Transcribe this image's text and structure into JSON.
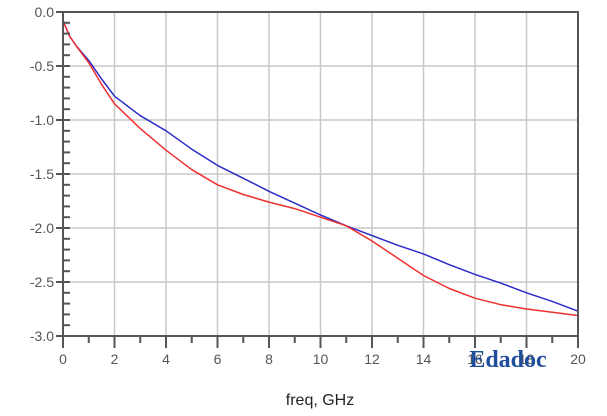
{
  "chart_data": {
    "type": "line",
    "title": "",
    "xlabel": "freq, GHz",
    "ylabel": "",
    "xlim": [
      0,
      20
    ],
    "ylim": [
      -3.0,
      0.0
    ],
    "x_ticks": [
      0,
      2,
      4,
      6,
      8,
      10,
      12,
      14,
      16,
      18,
      20
    ],
    "x_tick_labels": [
      "0",
      "2",
      "4",
      "6",
      "8",
      "10",
      "12",
      "14",
      "16",
      "18",
      "20"
    ],
    "y_ticks": [
      0.0,
      -0.5,
      -1.0,
      -1.5,
      -2.0,
      -2.5,
      -3.0
    ],
    "y_tick_labels": [
      "0.0",
      "-0.5",
      "-1.0",
      "-1.5",
      "-2.0",
      "-2.5",
      "-3.0"
    ],
    "grid": true,
    "legend": null,
    "x": [
      0,
      0.25,
      0.5,
      1,
      1.5,
      2,
      3,
      4,
      5,
      6,
      7,
      8,
      9,
      10,
      11,
      12,
      13,
      14,
      15,
      16,
      17,
      18,
      19,
      20
    ],
    "series": [
      {
        "name": "blue trace",
        "color": "#2b2bc8",
        "values": [
          -0.08,
          -0.22,
          -0.31,
          -0.45,
          -0.62,
          -0.78,
          -0.96,
          -1.1,
          -1.27,
          -1.42,
          -1.54,
          -1.66,
          -1.77,
          -1.88,
          -1.98,
          -2.07,
          -2.16,
          -2.24,
          -2.34,
          -2.43,
          -2.51,
          -2.6,
          -2.68,
          -2.77
        ]
      },
      {
        "name": "red trace",
        "color": "#f03030",
        "values": [
          -0.08,
          -0.22,
          -0.31,
          -0.47,
          -0.67,
          -0.85,
          -1.08,
          -1.28,
          -1.46,
          -1.6,
          -1.69,
          -1.76,
          -1.82,
          -1.9,
          -1.98,
          -2.12,
          -2.28,
          -2.44,
          -2.56,
          -2.65,
          -2.71,
          -2.75,
          -2.78,
          -2.81
        ]
      }
    ]
  },
  "watermark": {
    "text": "Edadoc"
  },
  "colors": {
    "axis": "#555555",
    "grid": "#c8c8c8"
  }
}
